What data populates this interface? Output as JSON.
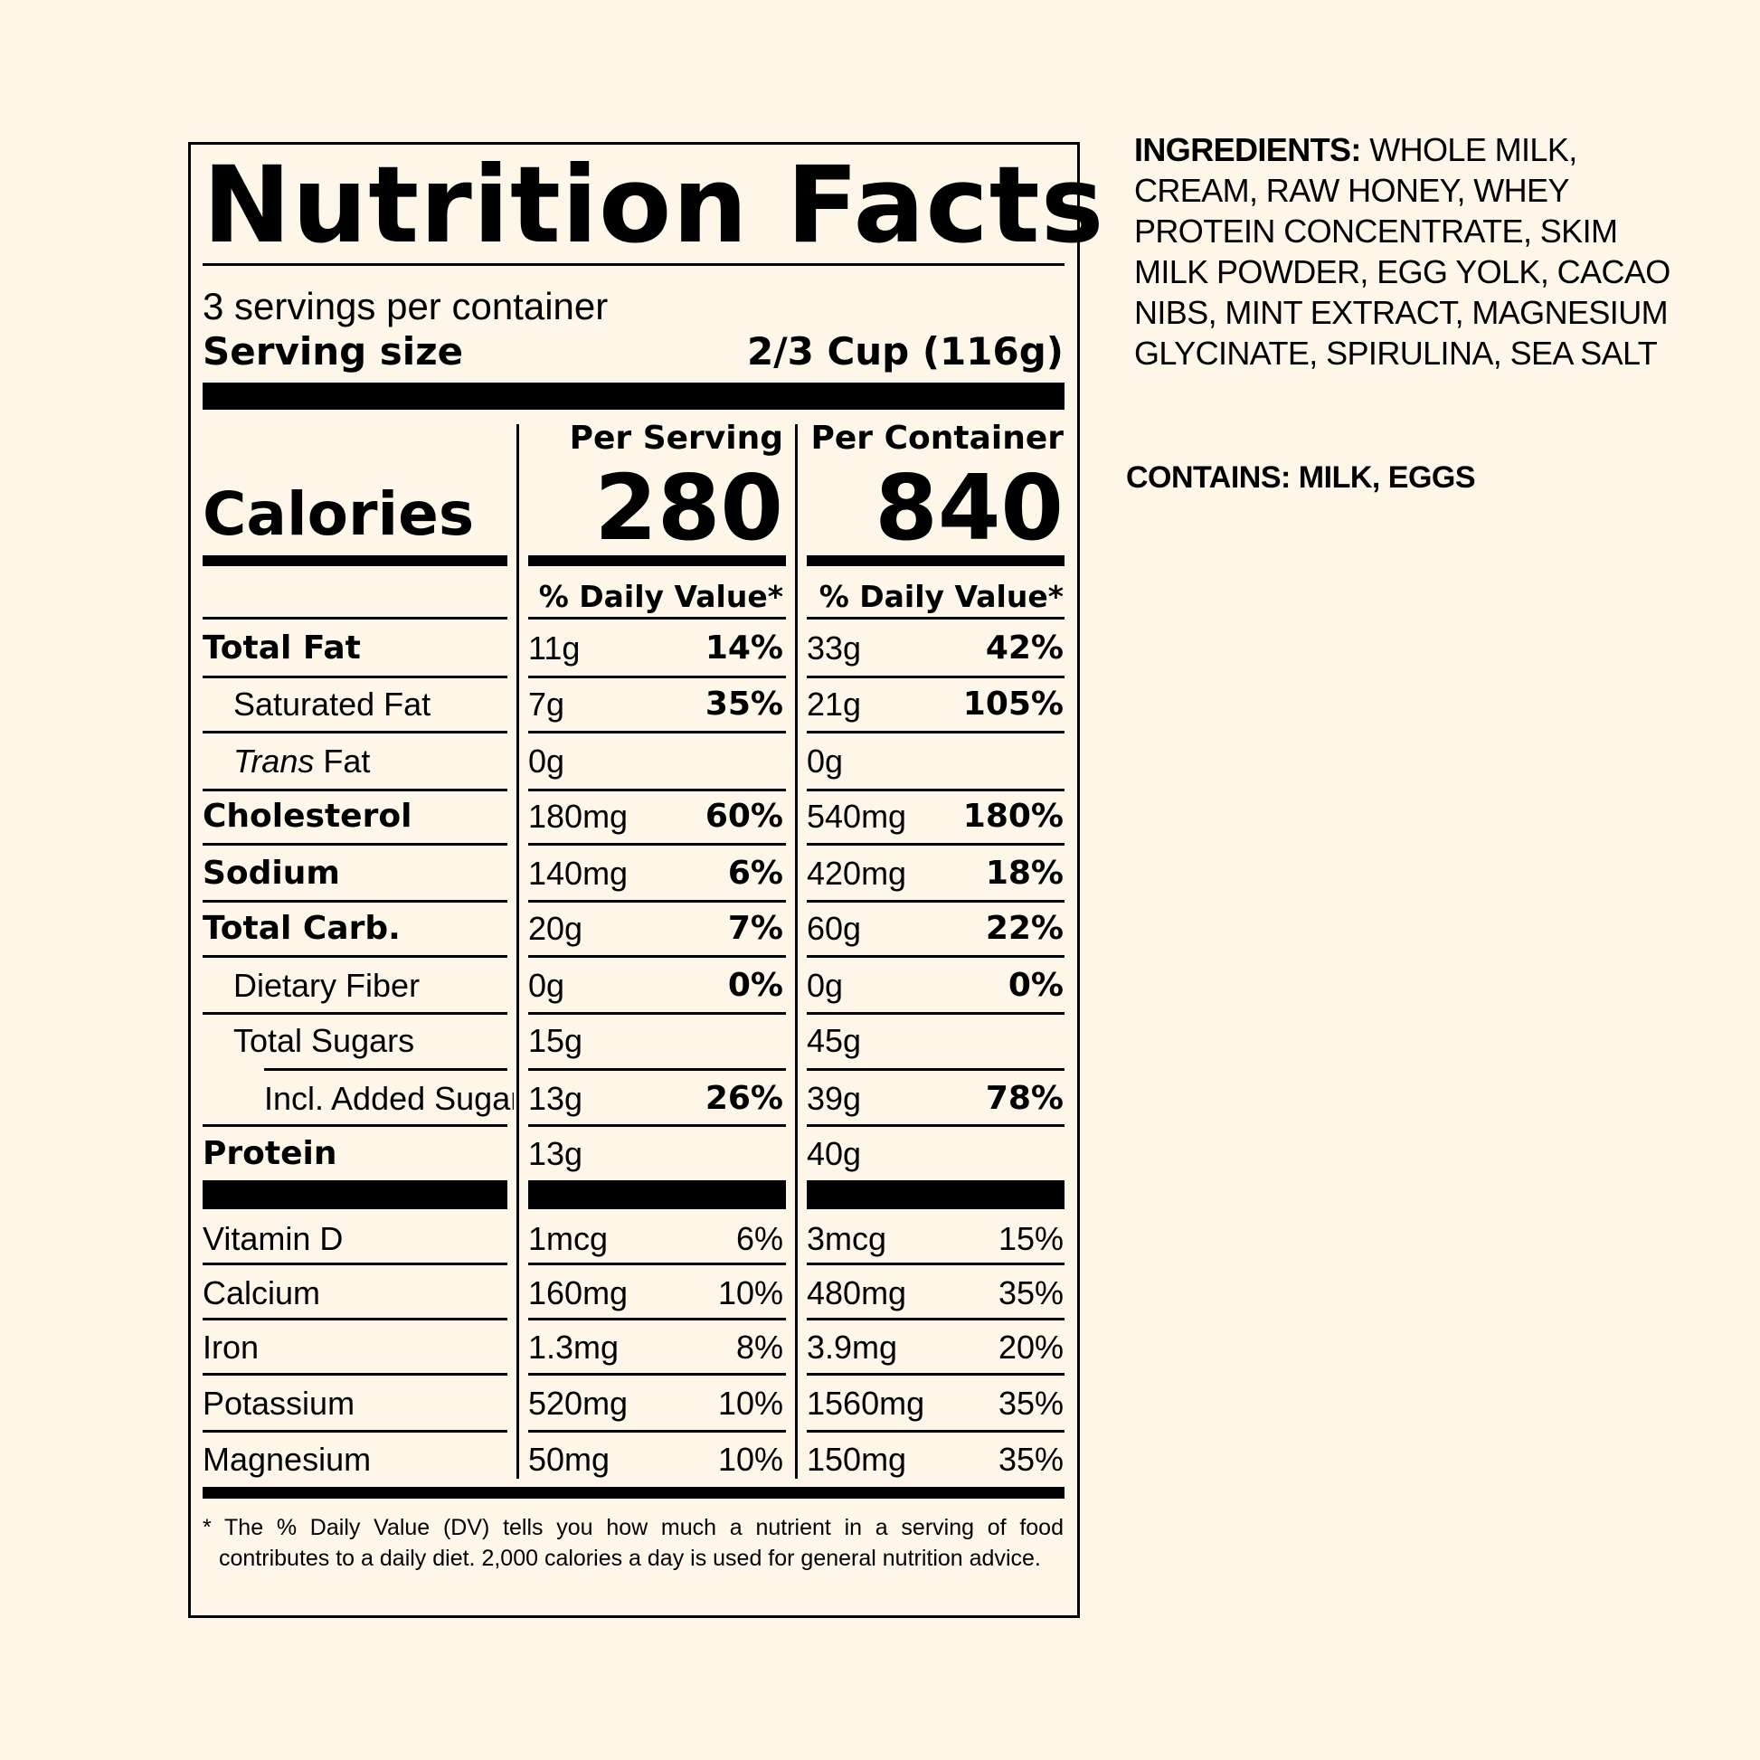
{
  "label": {
    "title": "Nutrition Facts",
    "servings_per_container": "3 servings per container",
    "serving_size_label": "Serving size",
    "serving_size_value": "2/3 Cup (116g)",
    "columns": {
      "per_serving": "Per Serving",
      "per_container": "Per Container"
    },
    "calories_label": "Calories",
    "calories_per_serving": "280",
    "calories_per_container": "840",
    "dv_header": "% Daily Value*",
    "nutrients": [
      {
        "name": "Total Fat",
        "bold": true,
        "indent": 0,
        "serving_amount": "11g",
        "serving_dv": "14%",
        "container_amount": "33g",
        "container_dv": "42%"
      },
      {
        "name": "Saturated Fat",
        "bold": false,
        "indent": 1,
        "serving_amount": "7g",
        "serving_dv": "35%",
        "container_amount": "21g",
        "container_dv": "105%"
      },
      {
        "name_italic": "Trans",
        "name": " Fat",
        "bold": false,
        "indent": 1,
        "serving_amount": "0g",
        "serving_dv": "",
        "container_amount": "0g",
        "container_dv": ""
      },
      {
        "name": "Cholesterol",
        "bold": true,
        "indent": 0,
        "serving_amount": "180mg",
        "serving_dv": "60%",
        "container_amount": "540mg",
        "container_dv": "180%"
      },
      {
        "name": "Sodium",
        "bold": true,
        "indent": 0,
        "serving_amount": "140mg",
        "serving_dv": "6%",
        "container_amount": "420mg",
        "container_dv": "18%"
      },
      {
        "name": "Total Carb.",
        "bold": true,
        "indent": 0,
        "serving_amount": "20g",
        "serving_dv": "7%",
        "container_amount": "60g",
        "container_dv": "22%"
      },
      {
        "name": "Dietary Fiber",
        "bold": false,
        "indent": 1,
        "serving_amount": "0g",
        "serving_dv": "0%",
        "container_amount": "0g",
        "container_dv": "0%"
      },
      {
        "name": "Total Sugars",
        "bold": false,
        "indent": 1,
        "serving_amount": "15g",
        "serving_dv": "",
        "container_amount": "45g",
        "container_dv": ""
      },
      {
        "name": "Incl. Added Sugars",
        "bold": false,
        "indent": 2,
        "serving_amount": "13g",
        "serving_dv": "26%",
        "container_amount": "39g",
        "container_dv": "78%"
      },
      {
        "name": "Protein",
        "bold": true,
        "indent": 0,
        "serving_amount": "13g",
        "serving_dv": "",
        "container_amount": "40g",
        "container_dv": ""
      }
    ],
    "vitamins": [
      {
        "name": "Vitamin D",
        "serving_amount": "1mcg",
        "serving_dv": "6%",
        "container_amount": "3mcg",
        "container_dv": "15%"
      },
      {
        "name": "Calcium",
        "serving_amount": "160mg",
        "serving_dv": "10%",
        "container_amount": "480mg",
        "container_dv": "35%"
      },
      {
        "name": "Iron",
        "serving_amount": "1.3mg",
        "serving_dv": "8%",
        "container_amount": "3.9mg",
        "container_dv": "20%"
      },
      {
        "name": "Potassium",
        "serving_amount": "520mg",
        "serving_dv": "10%",
        "container_amount": "1560mg",
        "container_dv": "35%"
      },
      {
        "name": "Magnesium",
        "serving_amount": "50mg",
        "serving_dv": "10%",
        "container_amount": "150mg",
        "container_dv": "35%"
      }
    ],
    "footnote": "* The % Daily Value (DV) tells you how much a nutrient in a serving of food contributes to a daily diet. 2,000 calories a day is used for general nutrition advice."
  },
  "ingredients": {
    "label": "INGREDIENTS:",
    "text": " WHOLE MILK, CREAM, RAW HONEY, WHEY PROTEIN CONCENTRATE, SKIM MILK POWDER, EGG YOLK, CACAO NIBS, MINT EXTRACT, MAGNESIUM GLYCINATE, SPIRULINA, SEA SALT"
  },
  "contains": "CONTAINS: MILK, EGGS",
  "colors": {
    "background": "#fdf6e9",
    "ink": "#000000"
  }
}
